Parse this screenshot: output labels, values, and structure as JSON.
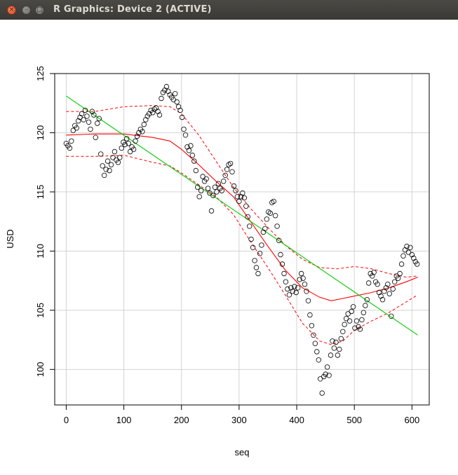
{
  "window": {
    "title": "R Graphics: Device 2 (ACTIVE)",
    "close_glyph": "×",
    "min_glyph": "–",
    "max_glyph": "□"
  },
  "colors": {
    "points": "#000000",
    "loess_fit": "#ff0000",
    "loess_band": "#ff0000",
    "linear_fit": "#00cc00",
    "grid": "#d3d3d3"
  },
  "chart_data": {
    "type": "scatter",
    "title": "",
    "xlabel": "seq",
    "ylabel": "USD",
    "xlim": [
      -20,
      630
    ],
    "ylim": [
      97,
      125
    ],
    "xticks": [
      0,
      100,
      200,
      300,
      400,
      500,
      600
    ],
    "yticks": [
      100,
      105,
      110,
      115,
      120,
      125
    ],
    "grid": true,
    "legend": "none",
    "points": [
      [
        0,
        119.1
      ],
      [
        3,
        118.9
      ],
      [
        6,
        118.7
      ],
      [
        9,
        119.3
      ],
      [
        12,
        120.2
      ],
      [
        15,
        120.6
      ],
      [
        18,
        120.4
      ],
      [
        21,
        121.0
      ],
      [
        24,
        121.3
      ],
      [
        27,
        121.6
      ],
      [
        30,
        121.1
      ],
      [
        33,
        121.9
      ],
      [
        36,
        121.4
      ],
      [
        39,
        120.9
      ],
      [
        42,
        120.3
      ],
      [
        45,
        121.8
      ],
      [
        48,
        121.5
      ],
      [
        51,
        119.6
      ],
      [
        54,
        120.8
      ],
      [
        57,
        121.2
      ],
      [
        60,
        118.2
      ],
      [
        63,
        117.2
      ],
      [
        66,
        116.4
      ],
      [
        69,
        116.9
      ],
      [
        72,
        117.6
      ],
      [
        75,
        116.8
      ],
      [
        78,
        117.3
      ],
      [
        81,
        117.9
      ],
      [
        84,
        118.4
      ],
      [
        87,
        117.7
      ],
      [
        90,
        117.5
      ],
      [
        93,
        117.9
      ],
      [
        96,
        118.7
      ],
      [
        99,
        119.2
      ],
      [
        102,
        119.0
      ],
      [
        105,
        119.5
      ],
      [
        108,
        119.1
      ],
      [
        111,
        118.4
      ],
      [
        114,
        118.8
      ],
      [
        117,
        118.6
      ],
      [
        120,
        119.3
      ],
      [
        123,
        119.7
      ],
      [
        126,
        120.0
      ],
      [
        129,
        120.3
      ],
      [
        132,
        120.1
      ],
      [
        135,
        120.7
      ],
      [
        138,
        121.1
      ],
      [
        141,
        121.4
      ],
      [
        144,
        121.6
      ],
      [
        147,
        121.9
      ],
      [
        150,
        121.7
      ],
      [
        153,
        122.0
      ],
      [
        156,
        122.1
      ],
      [
        159,
        121.8
      ],
      [
        162,
        121.5
      ],
      [
        165,
        122.9
      ],
      [
        168,
        123.4
      ],
      [
        171,
        123.6
      ],
      [
        174,
        123.9
      ],
      [
        177,
        123.5
      ],
      [
        180,
        123.2
      ],
      [
        183,
        123.0
      ],
      [
        186,
        122.8
      ],
      [
        189,
        123.3
      ],
      [
        192,
        122.6
      ],
      [
        195,
        122.2
      ],
      [
        198,
        121.9
      ],
      [
        201,
        121.3
      ],
      [
        204,
        120.3
      ],
      [
        207,
        119.8
      ],
      [
        210,
        118.8
      ],
      [
        213,
        118.5
      ],
      [
        216,
        118.9
      ],
      [
        219,
        118.1
      ],
      [
        222,
        117.6
      ],
      [
        225,
        116.8
      ],
      [
        228,
        115.4
      ],
      [
        231,
        114.6
      ],
      [
        234,
        115.1
      ],
      [
        237,
        116.3
      ],
      [
        240,
        115.9
      ],
      [
        243,
        116.1
      ],
      [
        246,
        115.3
      ],
      [
        249,
        114.9
      ],
      [
        252,
        113.4
      ],
      [
        255,
        114.7
      ],
      [
        258,
        115.4
      ],
      [
        261,
        115.0
      ],
      [
        264,
        115.7
      ],
      [
        267,
        115.3
      ],
      [
        270,
        115.1
      ],
      [
        273,
        115.9
      ],
      [
        276,
        116.4
      ],
      [
        279,
        116.9
      ],
      [
        282,
        117.3
      ],
      [
        285,
        117.4
      ],
      [
        288,
        116.7
      ],
      [
        291,
        115.5
      ],
      [
        294,
        115.1
      ],
      [
        297,
        114.6
      ],
      [
        300,
        114.2
      ],
      [
        303,
        114.6
      ],
      [
        306,
        114.9
      ],
      [
        309,
        114.5
      ],
      [
        312,
        113.8
      ],
      [
        315,
        112.9
      ],
      [
        318,
        112.1
      ],
      [
        321,
        111.0
      ],
      [
        324,
        110.3
      ],
      [
        327,
        109.2
      ],
      [
        330,
        108.6
      ],
      [
        333,
        108.1
      ],
      [
        336,
        109.8
      ],
      [
        339,
        110.5
      ],
      [
        342,
        111.6
      ],
      [
        345,
        111.9
      ],
      [
        348,
        112.7
      ],
      [
        351,
        113.3
      ],
      [
        354,
        113.2
      ],
      [
        357,
        114.1
      ],
      [
        360,
        114.2
      ],
      [
        363,
        113.0
      ],
      [
        366,
        112.1
      ],
      [
        369,
        110.9
      ],
      [
        372,
        109.7
      ],
      [
        375,
        108.9
      ],
      [
        378,
        108.1
      ],
      [
        381,
        107.4
      ],
      [
        384,
        106.8
      ],
      [
        387,
        106.3
      ],
      [
        390,
        106.9
      ],
      [
        393,
        106.6
      ],
      [
        396,
        107.0
      ],
      [
        399,
        106.5
      ],
      [
        402,
        106.9
      ],
      [
        405,
        107.6
      ],
      [
        408,
        108.1
      ],
      [
        411,
        107.7
      ],
      [
        414,
        107.2
      ],
      [
        417,
        106.6
      ],
      [
        420,
        105.8
      ],
      [
        423,
        104.6
      ],
      [
        426,
        103.7
      ],
      [
        429,
        102.9
      ],
      [
        432,
        102.2
      ],
      [
        435,
        101.5
      ],
      [
        438,
        100.8
      ],
      [
        441,
        99.2
      ],
      [
        444,
        98.0
      ],
      [
        447,
        99.4
      ],
      [
        450,
        99.6
      ],
      [
        453,
        100.2
      ],
      [
        456,
        99.5
      ],
      [
        459,
        101.2
      ],
      [
        462,
        102.4
      ],
      [
        465,
        101.8
      ],
      [
        468,
        102.3
      ],
      [
        471,
        101.2
      ],
      [
        474,
        101.7
      ],
      [
        477,
        102.6
      ],
      [
        480,
        103.2
      ],
      [
        483,
        103.8
      ],
      [
        486,
        104.3
      ],
      [
        489,
        104.7
      ],
      [
        492,
        104.1
      ],
      [
        495,
        104.9
      ],
      [
        498,
        105.3
      ],
      [
        501,
        103.5
      ],
      [
        504,
        104.1
      ],
      [
        507,
        103.6
      ],
      [
        510,
        103.4
      ],
      [
        513,
        104.2
      ],
      [
        516,
        104.8
      ],
      [
        519,
        105.4
      ],
      [
        522,
        105.9
      ],
      [
        525,
        107.3
      ],
      [
        528,
        108.1
      ],
      [
        531,
        107.9
      ],
      [
        534,
        108.2
      ],
      [
        537,
        107.4
      ],
      [
        540,
        107.2
      ],
      [
        543,
        106.5
      ],
      [
        546,
        106.2
      ],
      [
        549,
        105.9
      ],
      [
        552,
        106.6
      ],
      [
        555,
        106.9
      ],
      [
        558,
        107.2
      ],
      [
        561,
        106.4
      ],
      [
        564,
        104.5
      ],
      [
        567,
        106.8
      ],
      [
        570,
        107.4
      ],
      [
        573,
        107.9
      ],
      [
        576,
        107.7
      ],
      [
        579,
        108.1
      ],
      [
        582,
        108.9
      ],
      [
        585,
        109.6
      ],
      [
        588,
        110.1
      ],
      [
        591,
        110.4
      ],
      [
        594,
        109.9
      ],
      [
        597,
        110.3
      ],
      [
        600,
        109.7
      ],
      [
        603,
        109.4
      ],
      [
        606,
        109.1
      ],
      [
        609,
        108.9
      ]
    ],
    "linear_fit": [
      [
        0,
        123.1
      ],
      [
        610,
        102.9
      ]
    ],
    "loess_fit": [
      [
        0,
        119.8
      ],
      [
        50,
        119.9
      ],
      [
        100,
        119.9
      ],
      [
        150,
        119.6
      ],
      [
        180,
        119.3
      ],
      [
        200,
        118.6
      ],
      [
        230,
        117.3
      ],
      [
        260,
        115.9
      ],
      [
        290,
        114.6
      ],
      [
        320,
        112.5
      ],
      [
        350,
        110.4
      ],
      [
        380,
        108.4
      ],
      [
        410,
        106.9
      ],
      [
        440,
        106.1
      ],
      [
        460,
        105.8
      ],
      [
        480,
        106.0
      ],
      [
        500,
        106.2
      ],
      [
        530,
        106.5
      ],
      [
        560,
        106.9
      ],
      [
        590,
        107.4
      ],
      [
        610,
        107.8
      ]
    ],
    "loess_upper": [
      [
        0,
        121.8
      ],
      [
        50,
        121.8
      ],
      [
        100,
        122.2
      ],
      [
        150,
        122.3
      ],
      [
        180,
        122.2
      ],
      [
        200,
        121.6
      ],
      [
        230,
        119.8
      ],
      [
        260,
        117.6
      ],
      [
        290,
        115.4
      ],
      [
        320,
        113.6
      ],
      [
        350,
        112.0
      ],
      [
        380,
        110.5
      ],
      [
        410,
        109.3
      ],
      [
        440,
        108.6
      ],
      [
        470,
        108.5
      ],
      [
        500,
        108.7
      ],
      [
        530,
        108.5
      ],
      [
        560,
        108.1
      ],
      [
        590,
        107.8
      ],
      [
        610,
        107.9
      ]
    ],
    "loess_lower": [
      [
        0,
        118.0
      ],
      [
        50,
        118.0
      ],
      [
        100,
        118.1
      ],
      [
        150,
        117.5
      ],
      [
        180,
        117.2
      ],
      [
        200,
        116.6
      ],
      [
        230,
        115.6
      ],
      [
        260,
        114.6
      ],
      [
        290,
        113.1
      ],
      [
        320,
        110.8
      ],
      [
        350,
        108.6
      ],
      [
        380,
        106.3
      ],
      [
        410,
        103.9
      ],
      [
        440,
        102.4
      ],
      [
        460,
        102.1
      ],
      [
        480,
        102.4
      ],
      [
        500,
        103.3
      ],
      [
        530,
        104.1
      ],
      [
        560,
        104.8
      ],
      [
        590,
        105.7
      ],
      [
        610,
        106.3
      ]
    ]
  }
}
